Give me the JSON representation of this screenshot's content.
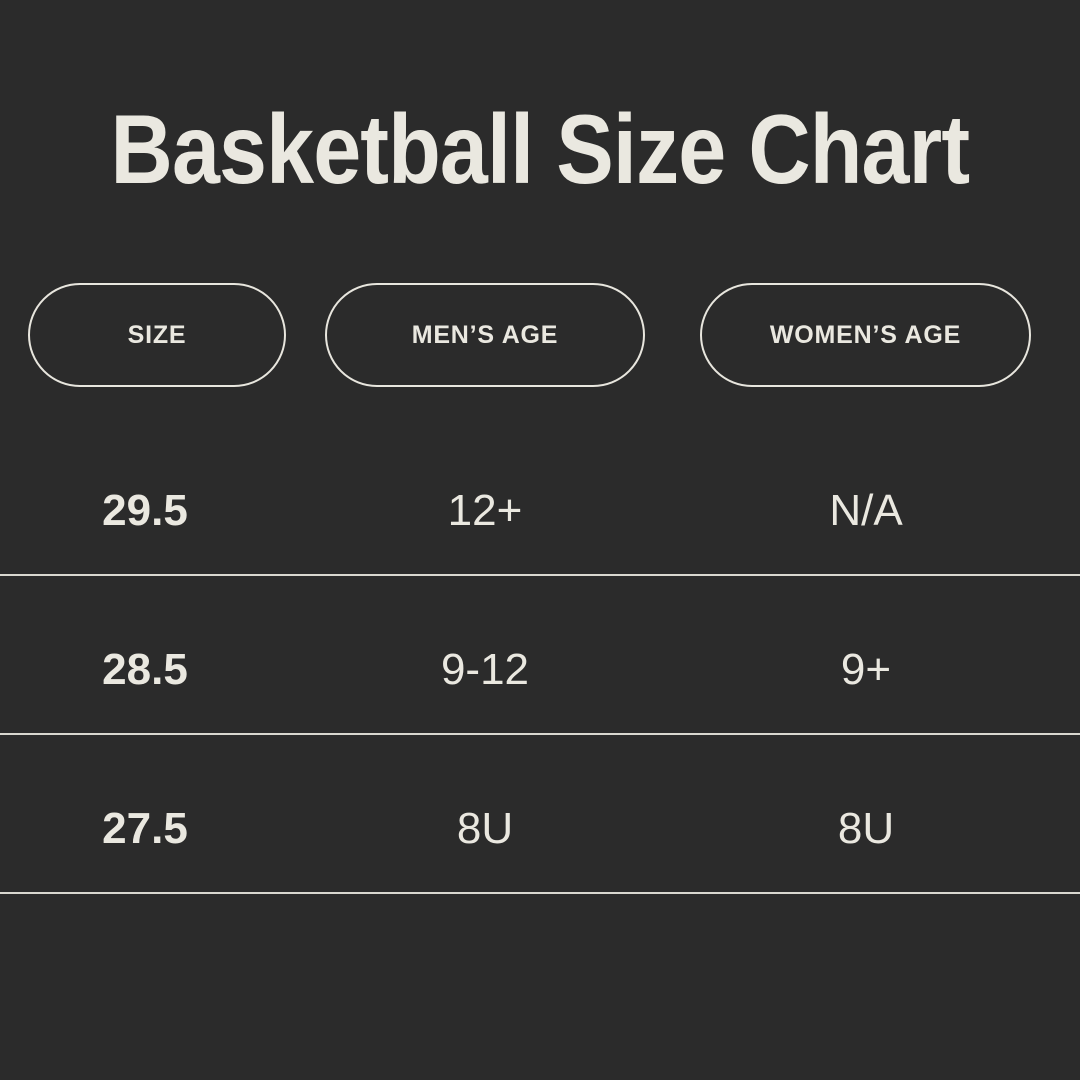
{
  "title": "Basketball Size Chart",
  "colors": {
    "background": "#2b2b2b",
    "text": "#eae8e0",
    "pill_border": "#e8e6de",
    "divider": "#d9d7d0"
  },
  "table": {
    "headers": [
      "SIZE",
      "MEN’S AGE",
      "WOMEN’S AGE"
    ],
    "rows": [
      [
        "29.5",
        "12+",
        "N/A"
      ],
      [
        "28.5",
        "9-12",
        "9+"
      ],
      [
        "27.5",
        "8U",
        "8U"
      ]
    ]
  },
  "chart_data": {
    "type": "table",
    "title": "Basketball Size Chart",
    "columns": [
      "SIZE",
      "MEN’S AGE",
      "WOMEN’S AGE"
    ],
    "rows": [
      [
        "29.5",
        "12+",
        "N/A"
      ],
      [
        "28.5",
        "9-12",
        "9+"
      ],
      [
        "27.5",
        "8U",
        "8U"
      ]
    ],
    "layout_hints": {
      "header_style": "outlined pill capsules",
      "row_dividers": "full-width thin light lines",
      "theme": "dark background, cream text"
    }
  }
}
